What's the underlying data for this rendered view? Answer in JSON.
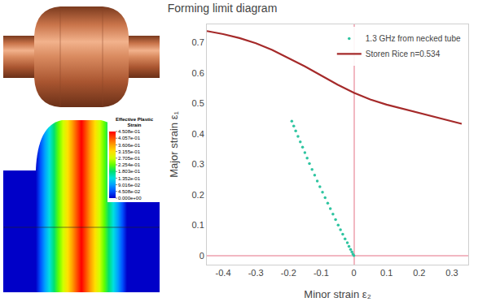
{
  "chart_data": {
    "type": "scatter",
    "title": "Forming limit diagram",
    "x_label": "Minor strain ε₂",
    "y_label": "Major strain ε₁",
    "xlim": [
      -0.45,
      0.35
    ],
    "xticks": [
      -0.4,
      -0.3,
      -0.2,
      -0.1,
      0,
      0.1,
      0.2,
      0.3
    ],
    "ylim": [
      -0.03,
      0.76
    ],
    "yticks": [
      0,
      0.1,
      0.2,
      0.3,
      0.4,
      0.5,
      0.6,
      0.7
    ],
    "grid": false,
    "legend": "top-right",
    "series": [
      {
        "name": "1.3 GHz from necked tube",
        "type": "scatter",
        "marker": "circle",
        "color": "#2ec4a0",
        "x": [
          0,
          -0.003,
          -0.006,
          -0.01,
          -0.015,
          -0.02,
          -0.027,
          -0.034,
          -0.041,
          -0.048,
          -0.056,
          -0.064,
          -0.072,
          -0.08,
          -0.088,
          -0.096,
          -0.104,
          -0.112,
          -0.12,
          -0.128,
          -0.136,
          -0.143,
          -0.15,
          -0.157,
          -0.164,
          -0.171,
          -0.178,
          -0.184,
          -0.19
        ],
        "y": [
          0,
          0.005,
          0.012,
          0.02,
          0.03,
          0.042,
          0.055,
          0.07,
          0.085,
          0.1,
          0.118,
          0.136,
          0.154,
          0.172,
          0.19,
          0.208,
          0.226,
          0.245,
          0.264,
          0.283,
          0.302,
          0.32,
          0.338,
          0.356,
          0.374,
          0.392,
          0.41,
          0.426,
          0.442
        ]
      },
      {
        "name": "Storen Rice n=0.534",
        "type": "line",
        "line_style": "solid",
        "color": "#a52a2a",
        "x": [
          -0.45,
          -0.4,
          -0.35,
          -0.3,
          -0.25,
          -0.2,
          -0.15,
          -0.1,
          -0.05,
          0,
          0.05,
          0.1,
          0.15,
          0.2,
          0.25,
          0.3,
          0.33
        ],
        "y": [
          0.738,
          0.728,
          0.715,
          0.698,
          0.676,
          0.65,
          0.622,
          0.592,
          0.562,
          0.535,
          0.513,
          0.496,
          0.482,
          0.47,
          0.456,
          0.442,
          0.433
        ]
      }
    ]
  },
  "simulation": {
    "colorbar": {
      "title": "Effective Plastic Strain",
      "ticks": [
        {
          "value": 0.4508,
          "label": "4.508e-01"
        },
        {
          "value": 0.4057,
          "label": "4.057e-01"
        },
        {
          "value": 0.3606,
          "label": "3.606e-01"
        },
        {
          "value": 0.3155,
          "label": "3.155e-01"
        },
        {
          "value": 0.2705,
          "label": "2.705e-01"
        },
        {
          "value": 0.2254,
          "label": "2.254e-01"
        },
        {
          "value": 0.1803,
          "label": "1.803e-01"
        },
        {
          "value": 0.1352,
          "label": "1.352e-01"
        },
        {
          "value": 0.09016,
          "label": "9.016e-02"
        },
        {
          "value": 0.04508,
          "label": "4.508e-02"
        },
        {
          "value": 0,
          "label": "0.000e+00"
        }
      ]
    }
  }
}
